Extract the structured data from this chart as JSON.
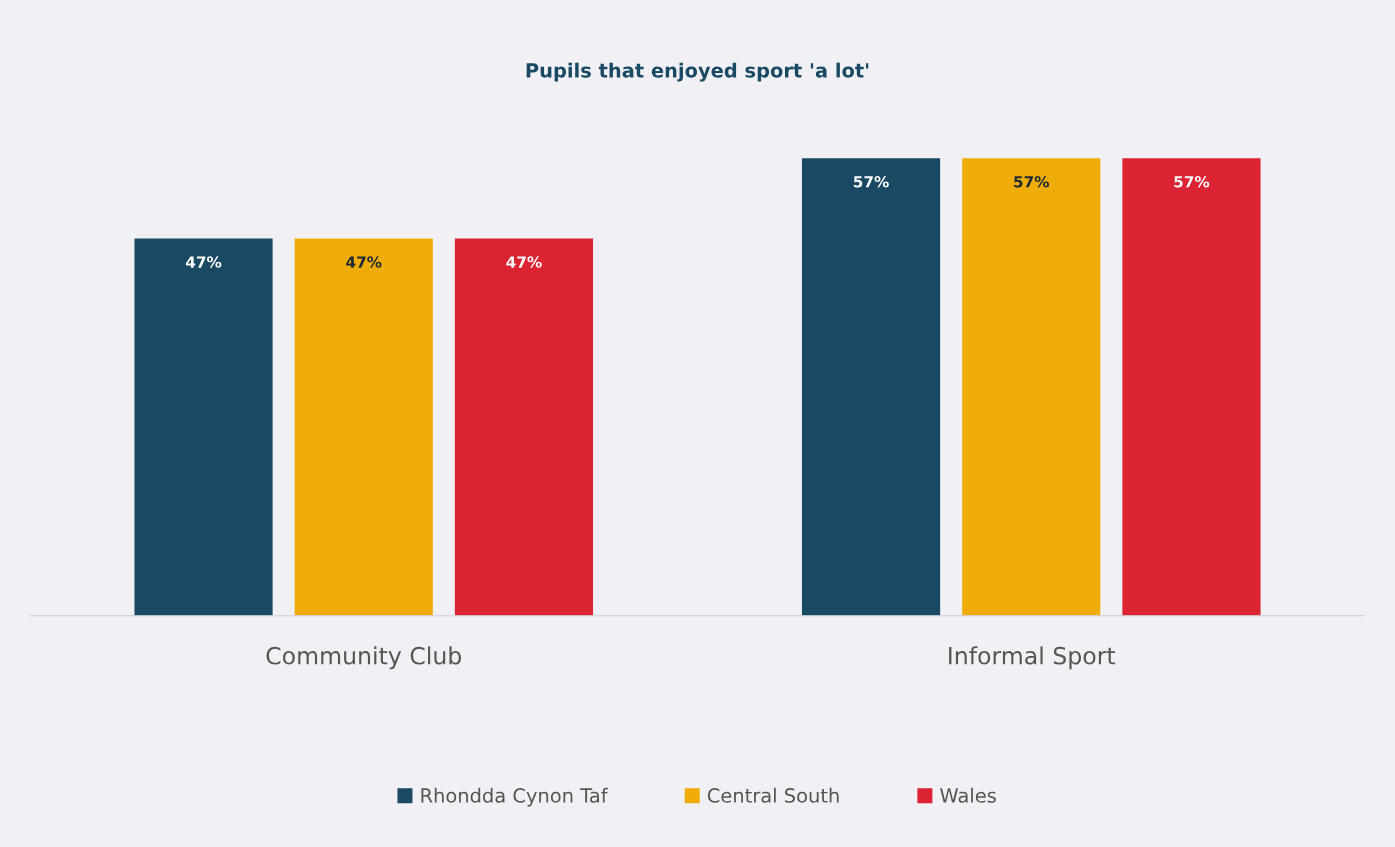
{
  "chart_data": {
    "type": "bar",
    "title": "Pupils that enjoyed sport 'a lot'",
    "categories": [
      "Community Club",
      "Informal Sport"
    ],
    "series": [
      {
        "name": "Rhondda Cynon Taf",
        "color": "#1a4a63",
        "values": [
          47,
          57
        ],
        "value_labels": [
          "47%",
          "57%"
        ]
      },
      {
        "name": "Central South",
        "color": "#f0ad0a",
        "values": [
          47,
          57
        ],
        "value_labels": [
          "47%",
          "57%"
        ]
      },
      {
        "name": "Wales",
        "color": "#dc2332",
        "values": [
          47,
          57
        ],
        "value_labels": [
          "47%",
          "57%"
        ]
      }
    ],
    "legend": "bottom",
    "grid": false,
    "tick_labels": "x"
  }
}
